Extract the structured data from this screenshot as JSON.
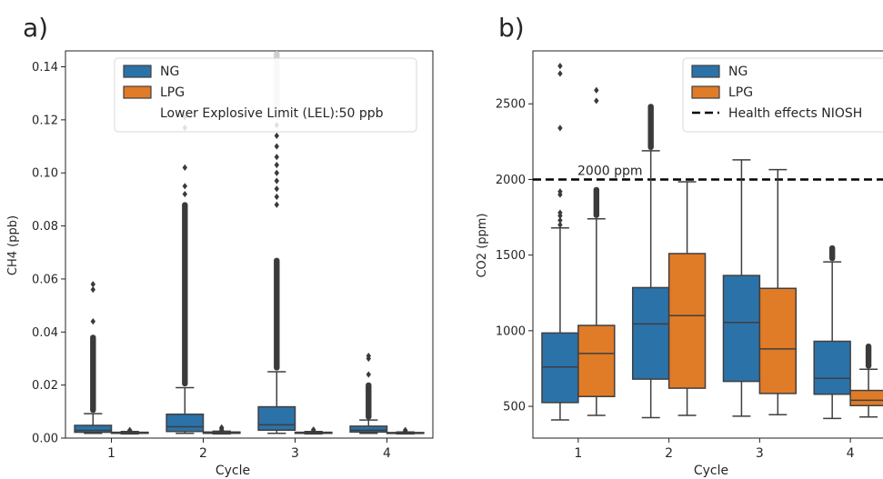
{
  "colors": {
    "NG": "#2b72a8",
    "LPG": "#e07b28",
    "edge": "#3f3f3f",
    "marker": "#3a3a3a"
  },
  "chart_data": [
    {
      "panel_label": "a)",
      "type": "box",
      "xlabel": "Cycle",
      "ylabel": "CH4 (ppb)",
      "categories": [
        "1",
        "2",
        "3",
        "4"
      ],
      "ylim": [
        0,
        0.146
      ],
      "yticks": [
        "0.00",
        "0.02",
        "0.04",
        "0.06",
        "0.08",
        "0.10",
        "0.12",
        "0.14"
      ],
      "ytick_values": [
        0,
        0.02,
        0.04,
        0.06,
        0.08,
        0.1,
        0.12,
        0.14
      ],
      "legend": {
        "placement": "top-center",
        "entries": [
          {
            "label": "NG",
            "kind": "patch",
            "color": "#2b72a8"
          },
          {
            "label": "LPG",
            "kind": "patch",
            "color": "#e07b28"
          },
          {
            "label": "Lower Explosive Limit (LEL):50 ppb",
            "kind": "none"
          }
        ]
      },
      "series": [
        {
          "name": "NG",
          "boxes": [
            {
              "category": "1",
              "whislo": 0.0018,
              "q1": 0.0022,
              "median": 0.0029,
              "q3": 0.0048,
              "whishi": 0.0092,
              "outlier_band": [
                0.0095,
                0.039
              ],
              "outliers": [
                0.044,
                0.056,
                0.058
              ]
            },
            {
              "category": "2",
              "whislo": 0.0018,
              "q1": 0.0025,
              "median": 0.0043,
              "q3": 0.009,
              "whishi": 0.019,
              "outlier_band": [
                0.0195,
                0.089
              ],
              "outliers": [
                0.092,
                0.095,
                0.102,
                0.117,
                0.121
              ]
            },
            {
              "category": "3",
              "whislo": 0.0018,
              "q1": 0.003,
              "median": 0.005,
              "q3": 0.0118,
              "whishi": 0.025,
              "outlier_band": [
                0.0255,
                0.068
              ],
              "outliers": [
                0.088,
                0.091,
                0.094,
                0.097,
                0.1,
                0.103,
                0.106,
                0.11,
                0.114,
                0.118
              ],
              "top_band": [
                0.12,
                0.146
              ]
            },
            {
              "category": "4",
              "whislo": 0.0018,
              "q1": 0.0023,
              "median": 0.003,
              "q3": 0.0045,
              "whishi": 0.0068,
              "outlier_band": [
                0.007,
                0.021
              ],
              "outliers": [
                0.024,
                0.03,
                0.031
              ]
            }
          ]
        },
        {
          "name": "LPG",
          "boxes": [
            {
              "category": "1",
              "whislo": 0.0016,
              "q1": 0.0018,
              "median": 0.002,
              "q3": 0.0022,
              "whishi": 0.0025,
              "outliers": [
                0.0028,
                0.003
              ]
            },
            {
              "category": "2",
              "whislo": 0.0016,
              "q1": 0.0018,
              "median": 0.002,
              "q3": 0.0023,
              "whishi": 0.0026,
              "outliers": [
                0.003,
                0.0035,
                0.004
              ]
            },
            {
              "category": "3",
              "whislo": 0.0016,
              "q1": 0.0018,
              "median": 0.002,
              "q3": 0.0022,
              "whishi": 0.0025,
              "outliers": [
                0.0028,
                0.0032
              ]
            },
            {
              "category": "4",
              "whislo": 0.0016,
              "q1": 0.0018,
              "median": 0.0019,
              "q3": 0.0021,
              "whishi": 0.0023,
              "outliers": [
                0.0026,
                0.003
              ]
            }
          ]
        }
      ]
    },
    {
      "panel_label": "b)",
      "type": "box",
      "xlabel": "Cycle",
      "ylabel": "CO2 (ppm)",
      "categories": [
        "1",
        "2",
        "3",
        "4"
      ],
      "ylim": [
        290,
        2850
      ],
      "yticks": [
        "500",
        "1000",
        "1500",
        "2000",
        "2500"
      ],
      "ytick_values": [
        500,
        1000,
        1500,
        2000,
        2500
      ],
      "reference_line": {
        "y": 2000,
        "label": "2000 ppm",
        "legend_label": "Health effects NIOSH"
      },
      "legend": {
        "placement": "top-right",
        "entries": [
          {
            "label": "NG",
            "kind": "patch",
            "color": "#2b72a8"
          },
          {
            "label": "LPG",
            "kind": "patch",
            "color": "#e07b28"
          },
          {
            "label": "Health effects NIOSH",
            "kind": "dashed-line",
            "color": "#000000"
          }
        ]
      },
      "series": [
        {
          "name": "NG",
          "boxes": [
            {
              "category": "1",
              "whislo": 410,
              "q1": 525,
              "median": 760,
              "q3": 985,
              "whishi": 1680,
              "outliers": [
                1700,
                1730,
                1760,
                1780,
                1900,
                1920,
                2340,
                2700,
                2750
              ]
            },
            {
              "category": "2",
              "whislo": 425,
              "q1": 680,
              "median": 1045,
              "q3": 1285,
              "whishi": 2190,
              "outlier_band": [
                2195,
                2500
              ]
            },
            {
              "category": "3",
              "whislo": 435,
              "q1": 665,
              "median": 1055,
              "q3": 1365,
              "whishi": 2130,
              "outliers": []
            },
            {
              "category": "4",
              "whislo": 420,
              "q1": 580,
              "median": 685,
              "q3": 930,
              "whishi": 1455,
              "outlier_band": [
                1460,
                1565
              ]
            }
          ]
        },
        {
          "name": "LPG",
          "boxes": [
            {
              "category": "1",
              "whislo": 440,
              "q1": 565,
              "median": 850,
              "q3": 1035,
              "whishi": 1740,
              "outlier_band": [
                1745,
                1950
              ],
              "outliers": [
                2520,
                2590
              ]
            },
            {
              "category": "2",
              "whislo": 440,
              "q1": 620,
              "median": 1100,
              "q3": 1510,
              "whishi": 1985,
              "outliers": []
            },
            {
              "category": "3",
              "whislo": 445,
              "q1": 585,
              "median": 880,
              "q3": 1280,
              "whishi": 2065,
              "outliers": []
            },
            {
              "category": "4",
              "whislo": 430,
              "q1": 505,
              "median": 540,
              "q3": 605,
              "whishi": 745,
              "outlier_band": [
                750,
                915
              ]
            }
          ]
        }
      ]
    }
  ]
}
